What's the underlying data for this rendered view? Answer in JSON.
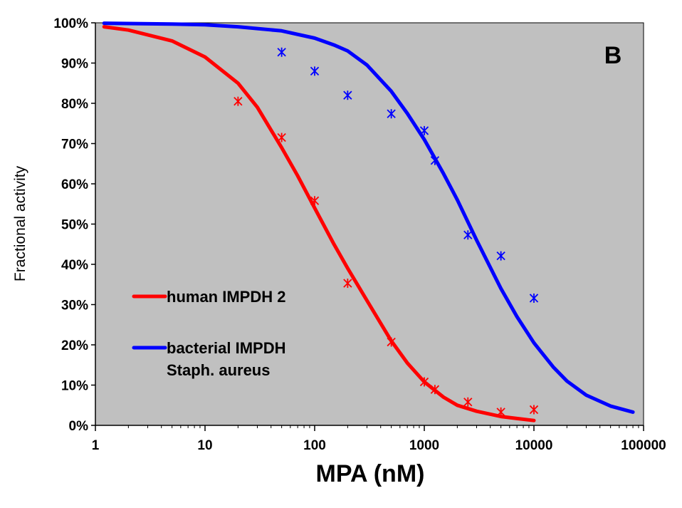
{
  "chart_data": {
    "type": "scatter",
    "xlabel": "MPA (nM)",
    "ylabel": "Fractional activity",
    "xscale": "log",
    "xlim": [
      1,
      100000
    ],
    "ylim": [
      0,
      100
    ],
    "x_ticks": [
      "1",
      "10",
      "100",
      "1000",
      "10000",
      "100000"
    ],
    "y_ticks": [
      "0%",
      "10%",
      "20%",
      "30%",
      "40%",
      "50%",
      "60%",
      "70%",
      "80%",
      "90%",
      "100%"
    ],
    "panel_label": "B",
    "grid": false,
    "background": "#c0c0c0",
    "legend_position": "left-middle",
    "series": [
      {
        "name": "human IMPDH 2",
        "color": "#ff0000",
        "points": [
          {
            "x": 20,
            "y": 80.5
          },
          {
            "x": 50,
            "y": 71.5
          },
          {
            "x": 100,
            "y": 55.8
          },
          {
            "x": 200,
            "y": 35.3
          },
          {
            "x": 500,
            "y": 20.7
          },
          {
            "x": 1000,
            "y": 10.8
          },
          {
            "x": 1250,
            "y": 8.9
          },
          {
            "x": 2500,
            "y": 5.8
          },
          {
            "x": 5000,
            "y": 3.3
          },
          {
            "x": 10000,
            "y": 3.9
          }
        ],
        "fit": {
          "x": [
            1.2,
            2,
            5,
            10,
            20,
            30,
            50,
            70,
            100,
            150,
            200,
            300,
            500,
            700,
            1000,
            1500,
            2000,
            3000,
            5000,
            7000,
            10000
          ],
          "y": [
            99,
            98.2,
            95.5,
            91.5,
            85,
            79,
            69,
            62,
            54,
            45,
            39,
            31,
            21,
            15.5,
            10.8,
            7,
            5,
            3.5,
            2.2,
            1.7,
            1.2
          ]
        }
      },
      {
        "name": "bacterial IMPDH\nStaph. aureus",
        "label_lines": [
          "bacterial IMPDH",
          "Staph. aureus"
        ],
        "color": "#0000ff",
        "points": [
          {
            "x": 50,
            "y": 92.7
          },
          {
            "x": 100,
            "y": 88
          },
          {
            "x": 200,
            "y": 82
          },
          {
            "x": 500,
            "y": 77.4
          },
          {
            "x": 1000,
            "y": 73.2
          },
          {
            "x": 1250,
            "y": 65.8
          },
          {
            "x": 2500,
            "y": 47.3
          },
          {
            "x": 5000,
            "y": 42.1
          },
          {
            "x": 10000,
            "y": 31.6
          }
        ],
        "fit": {
          "x": [
            1.2,
            5,
            10,
            20,
            50,
            100,
            150,
            200,
            300,
            500,
            700,
            1000,
            1500,
            2000,
            3000,
            5000,
            7000,
            10000,
            15000,
            20000,
            30000,
            50000,
            80000
          ],
          "y": [
            99.9,
            99.7,
            99.5,
            99,
            98,
            96.2,
            94.5,
            93,
            89.5,
            83,
            77.5,
            71,
            62.5,
            56,
            46,
            34,
            27,
            20.5,
            14.5,
            11,
            7.5,
            4.8,
            3.3
          ]
        }
      }
    ]
  }
}
